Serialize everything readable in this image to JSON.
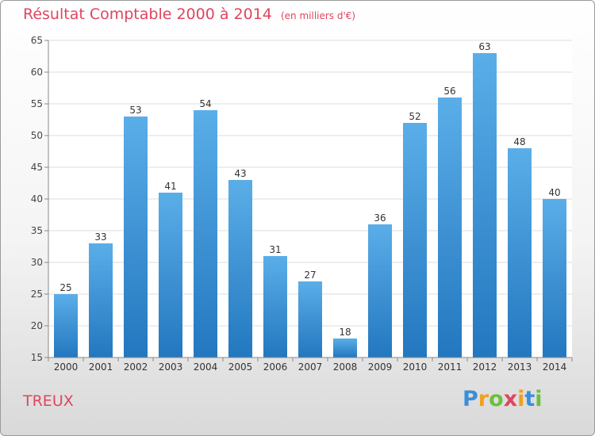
{
  "chart_data": {
    "type": "bar",
    "title": "Résultat Comptable 2000 à 2014",
    "subtitle": "(en milliers d'€)",
    "categories": [
      "2000",
      "2001",
      "2002",
      "2003",
      "2004",
      "2005",
      "2006",
      "2007",
      "2008",
      "2009",
      "2010",
      "2011",
      "2012",
      "2013",
      "2014"
    ],
    "values": [
      25,
      33,
      53,
      41,
      54,
      43,
      31,
      27,
      18,
      36,
      52,
      56,
      63,
      48,
      40
    ],
    "ylim": [
      15,
      65
    ],
    "yticks": [
      15,
      20,
      25,
      30,
      35,
      40,
      45,
      50,
      55,
      60,
      65
    ],
    "grid": true,
    "bar_color": "#3b8fd8"
  },
  "place_name": "TREUX",
  "logo": {
    "letters": [
      "P",
      "r",
      "o",
      "x",
      "i",
      "t",
      "i"
    ],
    "colors": [
      "#3b8fd8",
      "#f0a020",
      "#6cbf3f",
      "#e0455f",
      "#f0a020",
      "#3b8fd8",
      "#6cbf3f"
    ]
  }
}
